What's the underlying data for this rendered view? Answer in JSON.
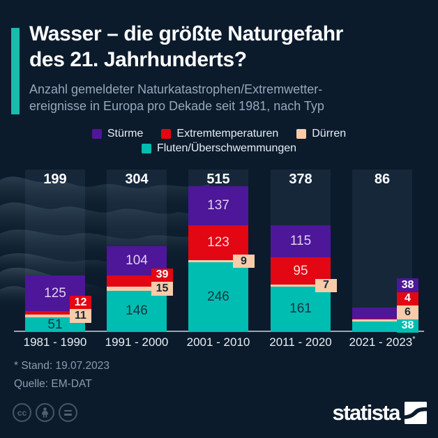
{
  "header": {
    "title_line1": "Wasser – die größte Naturgefahr",
    "title_line2": "des 21. Jahrhunderts?",
    "subtitle_line1": "Anzahl gemeldeter Naturkatastrophen/Extremwetter-",
    "subtitle_line2": "ereignisse in Europa pro Dekade seit 1981, nach Typ"
  },
  "colors": {
    "background": "#0B1B2C",
    "accent_teal": "#19BCAB",
    "sturme": "#4E1699",
    "extremtemperaturen": "#E30613",
    "duerren": "#F8CCA9",
    "fluten": "#00BDB2",
    "column_tint": "rgba(151,197,235,0.08)",
    "axis_line": "rgba(200,214,224,0.75)",
    "label_on_fluten": "#0E3642",
    "label_on_sturme": "#DFD3F0",
    "label_on_extrem": "#F8DCDC",
    "callout_text_dark": "#16293B",
    "callout_text_light": "#FFFFFF"
  },
  "chart_data": {
    "type": "bar",
    "stacked": true,
    "title": "Wasser – die größte Naturgefahr des 21. Jahrhunderts?",
    "subtitle": "Anzahl gemeldeter Naturkatastrophen/Extremwetterereignisse in Europa pro Dekade seit 1981, nach Typ",
    "categories": [
      "1981 - 1990",
      "1991 - 2000",
      "2001 - 2010",
      "2011 - 2020",
      "2021 - 2023*"
    ],
    "series": [
      {
        "name": "Stürme",
        "color_key": "sturme",
        "values": [
          125,
          104,
          137,
          115,
          38
        ]
      },
      {
        "name": "Extremtemperaturen",
        "color_key": "extremtemperaturen",
        "values": [
          12,
          39,
          123,
          95,
          4
        ]
      },
      {
        "name": "Dürren",
        "color_key": "duerren",
        "values": [
          11,
          15,
          9,
          7,
          6
        ]
      },
      {
        "name": "Fluten/Überschwemmungen",
        "color_key": "fluten",
        "values": [
          51,
          146,
          246,
          161,
          38
        ]
      }
    ],
    "totals": [
      199,
      304,
      515,
      378,
      86
    ],
    "stack_order_bottom_to_top": [
      "Fluten/Überschwemmungen",
      "Dürren",
      "Extremtemperaturen",
      "Stürme"
    ],
    "legend_rows": [
      [
        "Stürme",
        "Extremtemperaturen",
        "Dürren"
      ],
      [
        "Fluten/Überschwemmungen"
      ]
    ],
    "legend_position": "top-center",
    "grid": false,
    "ylim": [
      0,
      515
    ]
  },
  "footnotes": {
    "stand": "* Stand: 19.07.2023",
    "quelle": "Quelle: EM-DAT"
  },
  "branding": {
    "wordmark": "statista",
    "cc_label": "cc"
  }
}
